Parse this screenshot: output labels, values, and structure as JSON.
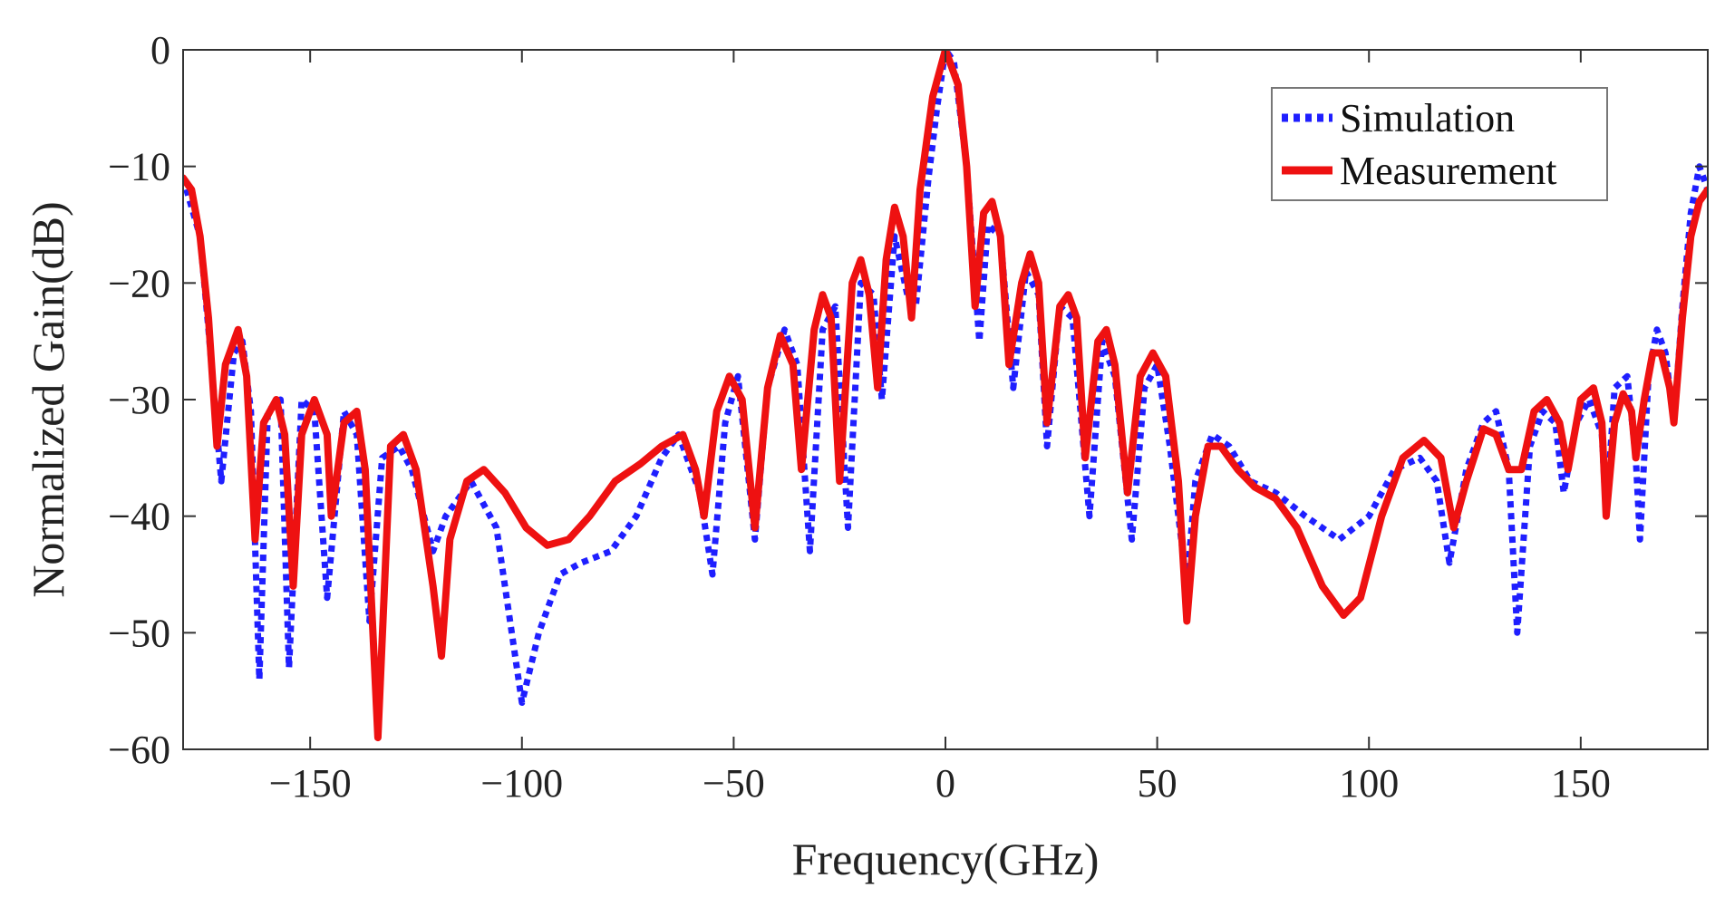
{
  "chart_data": {
    "type": "line",
    "title": "",
    "xlabel": "Frequency(GHz)",
    "ylabel": "Normalized Gain(dB)",
    "xlim": [
      -180,
      180
    ],
    "ylim": [
      -60,
      0
    ],
    "xticks": [
      -150,
      -100,
      -50,
      0,
      50,
      100,
      150
    ],
    "yticks": [
      0,
      -10,
      -20,
      -30,
      -40,
      -50,
      -60
    ],
    "xtick_labels": [
      "−150",
      "−100",
      "−50",
      "0",
      "50",
      "100",
      "150"
    ],
    "ytick_labels": [
      "0",
      "−10",
      "−20",
      "−30",
      "−40",
      "−50",
      "−60"
    ],
    "grid": false,
    "legend_position": "top-right",
    "series": [
      {
        "name": "Simulation",
        "color": "#1f1fff",
        "style": "dotted",
        "points": [
          [
            -180,
            -11
          ],
          [
            -176,
            -16
          ],
          [
            -174,
            -24
          ],
          [
            -171,
            -37
          ],
          [
            -168,
            -26
          ],
          [
            -166,
            -25
          ],
          [
            -164,
            -31
          ],
          [
            -162,
            -54
          ],
          [
            -160,
            -31
          ],
          [
            -157,
            -30
          ],
          [
            -155,
            -53
          ],
          [
            -152,
            -30
          ],
          [
            -149,
            -31
          ],
          [
            -146,
            -47
          ],
          [
            -142,
            -31
          ],
          [
            -139,
            -33
          ],
          [
            -136,
            -49
          ],
          [
            -133,
            -35
          ],
          [
            -129,
            -34
          ],
          [
            -126,
            -36
          ],
          [
            -121,
            -43
          ],
          [
            -118,
            -40
          ],
          [
            -112,
            -37
          ],
          [
            -106,
            -41
          ],
          [
            -100,
            -56
          ],
          [
            -96,
            -50
          ],
          [
            -91,
            -45
          ],
          [
            -86,
            -44
          ],
          [
            -79,
            -43
          ],
          [
            -73,
            -40
          ],
          [
            -67,
            -35
          ],
          [
            -63,
            -33
          ],
          [
            -58,
            -38
          ],
          [
            -55,
            -45
          ],
          [
            -52,
            -32
          ],
          [
            -49,
            -28
          ],
          [
            -45,
            -42
          ],
          [
            -42,
            -29
          ],
          [
            -38,
            -24
          ],
          [
            -35,
            -27
          ],
          [
            -32,
            -43
          ],
          [
            -29,
            -24
          ],
          [
            -26,
            -22
          ],
          [
            -23,
            -41
          ],
          [
            -20,
            -20
          ],
          [
            -17,
            -21
          ],
          [
            -15,
            -30
          ],
          [
            -12,
            -16
          ],
          [
            -9,
            -21
          ],
          [
            -7,
            -22
          ],
          [
            -4,
            -11
          ],
          [
            -2,
            -5
          ],
          [
            0,
            0
          ],
          [
            2,
            -1
          ],
          [
            5,
            -10
          ],
          [
            8,
            -25
          ],
          [
            10,
            -15
          ],
          [
            13,
            -16
          ],
          [
            16,
            -29
          ],
          [
            19,
            -19
          ],
          [
            22,
            -21
          ],
          [
            24,
            -34
          ],
          [
            27,
            -22
          ],
          [
            30,
            -23
          ],
          [
            34,
            -40
          ],
          [
            37,
            -25
          ],
          [
            40,
            -28
          ],
          [
            44,
            -42
          ],
          [
            47,
            -29
          ],
          [
            50,
            -27
          ],
          [
            53,
            -34
          ],
          [
            55,
            -40
          ],
          [
            57,
            -46
          ],
          [
            59,
            -37
          ],
          [
            63,
            -33
          ],
          [
            67,
            -34
          ],
          [
            72,
            -37
          ],
          [
            78,
            -38
          ],
          [
            85,
            -40
          ],
          [
            93,
            -42
          ],
          [
            100,
            -40
          ],
          [
            106,
            -36
          ],
          [
            112,
            -35
          ],
          [
            116,
            -37
          ],
          [
            119,
            -44
          ],
          [
            123,
            -36
          ],
          [
            127,
            -32
          ],
          [
            130,
            -31
          ],
          [
            133,
            -36
          ],
          [
            135,
            -50
          ],
          [
            138,
            -34
          ],
          [
            141,
            -31
          ],
          [
            144,
            -32
          ],
          [
            146,
            -38
          ],
          [
            149,
            -32
          ],
          [
            152,
            -30
          ],
          [
            155,
            -33
          ],
          [
            156,
            -40
          ],
          [
            158,
            -29
          ],
          [
            161,
            -28
          ],
          [
            163,
            -35
          ],
          [
            164,
            -42
          ],
          [
            166,
            -28
          ],
          [
            168,
            -24
          ],
          [
            170,
            -26
          ],
          [
            172,
            -32
          ],
          [
            174,
            -22
          ],
          [
            176,
            -14
          ],
          [
            178,
            -10
          ],
          [
            180,
            -12
          ]
        ]
      },
      {
        "name": "Measurement",
        "color": "#ee1111",
        "style": "solid",
        "points": [
          [
            -180,
            -11
          ],
          [
            -178,
            -12
          ],
          [
            -176,
            -16
          ],
          [
            -174,
            -23
          ],
          [
            -172,
            -34
          ],
          [
            -170,
            -27
          ],
          [
            -167,
            -24
          ],
          [
            -165,
            -28
          ],
          [
            -163,
            -42
          ],
          [
            -161,
            -32
          ],
          [
            -158,
            -30
          ],
          [
            -156,
            -33
          ],
          [
            -154,
            -46
          ],
          [
            -152,
            -33
          ],
          [
            -149,
            -30
          ],
          [
            -146,
            -33
          ],
          [
            -145,
            -40
          ],
          [
            -142,
            -32
          ],
          [
            -139,
            -31
          ],
          [
            -137,
            -36
          ],
          [
            -134,
            -59
          ],
          [
            -131,
            -34
          ],
          [
            -128,
            -33
          ],
          [
            -125,
            -36
          ],
          [
            -121,
            -46
          ],
          [
            -119,
            -52
          ],
          [
            -117,
            -42
          ],
          [
            -113,
            -37
          ],
          [
            -109,
            -36
          ],
          [
            -104,
            -38
          ],
          [
            -99,
            -41
          ],
          [
            -94,
            -42.5
          ],
          [
            -89,
            -42
          ],
          [
            -84,
            -40
          ],
          [
            -78,
            -37
          ],
          [
            -72,
            -35.5
          ],
          [
            -67,
            -34
          ],
          [
            -62,
            -33
          ],
          [
            -59,
            -36
          ],
          [
            -57,
            -40
          ],
          [
            -54,
            -31
          ],
          [
            -51,
            -28
          ],
          [
            -48,
            -30
          ],
          [
            -45,
            -41
          ],
          [
            -42,
            -29
          ],
          [
            -39,
            -24.5
          ],
          [
            -36,
            -27
          ],
          [
            -34,
            -36
          ],
          [
            -31,
            -24
          ],
          [
            -29,
            -21
          ],
          [
            -27,
            -23
          ],
          [
            -25,
            -37
          ],
          [
            -22,
            -20
          ],
          [
            -20,
            -18
          ],
          [
            -18,
            -21
          ],
          [
            -16,
            -29
          ],
          [
            -14,
            -18
          ],
          [
            -12,
            -13.5
          ],
          [
            -10,
            -16
          ],
          [
            -8,
            -23
          ],
          [
            -6,
            -12
          ],
          [
            -3,
            -4
          ],
          [
            0,
            0
          ],
          [
            3,
            -3
          ],
          [
            5,
            -10
          ],
          [
            7,
            -22
          ],
          [
            9,
            -14
          ],
          [
            11,
            -13
          ],
          [
            13,
            -16
          ],
          [
            15,
            -27
          ],
          [
            18,
            -20
          ],
          [
            20,
            -17.5
          ],
          [
            22,
            -20
          ],
          [
            24,
            -32
          ],
          [
            27,
            -22
          ],
          [
            29,
            -21
          ],
          [
            31,
            -23
          ],
          [
            33,
            -35
          ],
          [
            36,
            -25
          ],
          [
            38,
            -24
          ],
          [
            40,
            -27
          ],
          [
            43,
            -38
          ],
          [
            46,
            -28
          ],
          [
            49,
            -26
          ],
          [
            52,
            -28
          ],
          [
            55,
            -37
          ],
          [
            57,
            -49
          ],
          [
            59,
            -40
          ],
          [
            62,
            -34
          ],
          [
            65,
            -34
          ],
          [
            69,
            -36
          ],
          [
            73,
            -37.5
          ],
          [
            78,
            -38.5
          ],
          [
            83,
            -41
          ],
          [
            89,
            -46
          ],
          [
            94,
            -48.5
          ],
          [
            98,
            -47
          ],
          [
            103,
            -40
          ],
          [
            108,
            -35
          ],
          [
            113,
            -33.5
          ],
          [
            117,
            -35
          ],
          [
            120,
            -41
          ],
          [
            123,
            -37
          ],
          [
            127,
            -32.5
          ],
          [
            130,
            -33
          ],
          [
            133,
            -36
          ],
          [
            136,
            -36
          ],
          [
            139,
            -31
          ],
          [
            142,
            -30
          ],
          [
            145,
            -32
          ],
          [
            147,
            -36
          ],
          [
            150,
            -30
          ],
          [
            153,
            -29
          ],
          [
            155,
            -32
          ],
          [
            156,
            -40
          ],
          [
            158,
            -32
          ],
          [
            160,
            -29.5
          ],
          [
            162,
            -31
          ],
          [
            163,
            -35
          ],
          [
            165,
            -30
          ],
          [
            167,
            -26
          ],
          [
            169,
            -26
          ],
          [
            171,
            -29
          ],
          [
            172,
            -32
          ],
          [
            174,
            -23
          ],
          [
            176,
            -16
          ],
          [
            178,
            -13
          ],
          [
            180,
            -12
          ]
        ]
      }
    ]
  }
}
